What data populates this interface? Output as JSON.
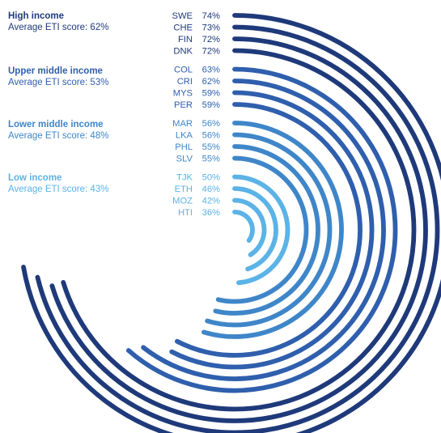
{
  "chart_data": {
    "type": "radial-bar",
    "unit": "%",
    "groups": [
      {
        "title": "High income",
        "subtitle": "Average ETI score: 62%",
        "color": "#1f3a7a",
        "items": [
          {
            "country": "SWE",
            "value": 74
          },
          {
            "country": "CHE",
            "value": 73
          },
          {
            "country": "FIN",
            "value": 72
          },
          {
            "country": "DNK",
            "value": 72
          }
        ]
      },
      {
        "title": "Upper middle income",
        "subtitle": "Average ETI score: 53%",
        "color": "#2f5fad",
        "items": [
          {
            "country": "COL",
            "value": 63
          },
          {
            "country": "CRI",
            "value": 62
          },
          {
            "country": "MYS",
            "value": 59
          },
          {
            "country": "PER",
            "value": 59
          }
        ]
      },
      {
        "title": "Lower middle income",
        "subtitle": "Average ETI score: 48%",
        "color": "#3f86c9",
        "items": [
          {
            "country": "MAR",
            "value": 56
          },
          {
            "country": "LKA",
            "value": 56
          },
          {
            "country": "PHL",
            "value": 55
          },
          {
            "country": "SLV",
            "value": 55
          }
        ]
      },
      {
        "title": "Low income",
        "subtitle": "Average ETI score: 43%",
        "color": "#5bb3e6",
        "items": [
          {
            "country": "TJK",
            "value": 50
          },
          {
            "country": "ETH",
            "value": 46
          },
          {
            "country": "MOZ",
            "value": 42
          },
          {
            "country": "HTI",
            "value": 36
          }
        ]
      }
    ]
  }
}
